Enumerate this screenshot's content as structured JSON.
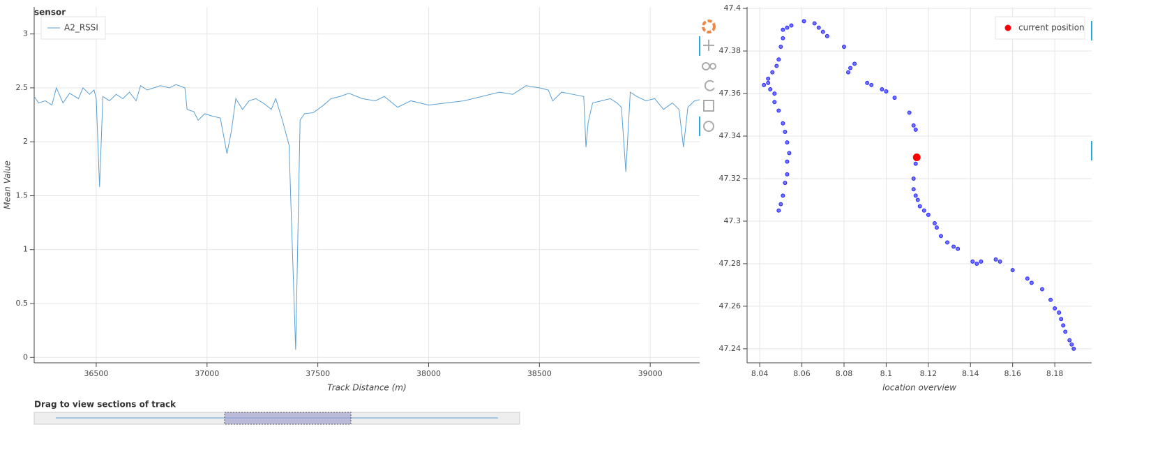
{
  "chart_data": [
    {
      "type": "line",
      "title": "sensor",
      "x_label": "Track Distance (m)",
      "y_label": "Mean Value",
      "legend": "top_left",
      "xlim": [
        36220,
        39223
      ],
      "ylim": [
        -0.05,
        3.25
      ],
      "xticks": [
        36500,
        37000,
        37500,
        38000,
        38500,
        39000
      ],
      "yticks": [
        0,
        0.5,
        1,
        1.5,
        2,
        2.5,
        3
      ],
      "grid": true,
      "series": [
        {
          "name": "A2_RSSI",
          "color": "#5a9fd4",
          "x": [
            36220,
            36240,
            36270,
            36300,
            36320,
            36350,
            36380,
            36420,
            36440,
            36470,
            36490,
            36500,
            36515,
            36530,
            36560,
            36590,
            36620,
            36650,
            36680,
            36700,
            36730,
            36760,
            36790,
            36830,
            36860,
            36900,
            36910,
            36940,
            36960,
            36990,
            37020,
            37060,
            37090,
            37110,
            37130,
            37160,
            37190,
            37220,
            37260,
            37290,
            37310,
            37340,
            37370,
            37400,
            37420,
            37440,
            37480,
            37520,
            37560,
            37600,
            37640,
            37700,
            37760,
            37800,
            37860,
            37920,
            38000,
            38080,
            38160,
            38240,
            38320,
            38380,
            38440,
            38500,
            38540,
            38560,
            38600,
            38650,
            38700,
            38710,
            38720,
            38740,
            38780,
            38820,
            38850,
            38870,
            38890,
            38910,
            38940,
            38980,
            39020,
            39060,
            39100,
            39130,
            39150,
            39170,
            39200,
            39223
          ],
          "values": [
            2.42,
            2.36,
            2.38,
            2.34,
            2.5,
            2.36,
            2.45,
            2.4,
            2.5,
            2.44,
            2.48,
            2.4,
            1.58,
            2.42,
            2.38,
            2.44,
            2.4,
            2.46,
            2.38,
            2.52,
            2.48,
            2.5,
            2.52,
            2.5,
            2.53,
            2.5,
            2.3,
            2.28,
            2.2,
            2.26,
            2.24,
            2.22,
            1.89,
            2.1,
            2.4,
            2.3,
            2.38,
            2.4,
            2.35,
            2.3,
            2.4,
            2.2,
            1.97,
            0.07,
            2.2,
            2.26,
            2.27,
            2.33,
            2.4,
            2.42,
            2.45,
            2.4,
            2.38,
            2.42,
            2.32,
            2.38,
            2.34,
            2.36,
            2.38,
            2.42,
            2.46,
            2.44,
            2.52,
            2.5,
            2.48,
            2.38,
            2.46,
            2.44,
            2.42,
            1.95,
            2.18,
            2.36,
            2.38,
            2.4,
            2.36,
            2.32,
            1.72,
            2.46,
            2.42,
            2.38,
            2.4,
            2.3,
            2.36,
            2.3,
            1.95,
            2.32,
            2.38,
            2.39
          ]
        }
      ]
    },
    {
      "type": "scatter",
      "x_label": "location overview",
      "legend": "top_right",
      "xlim": [
        8.034,
        8.1975
      ],
      "ylim": [
        47.2334,
        47.4007
      ],
      "xticks": [
        8.04,
        8.06,
        8.08,
        8.1,
        8.12,
        8.14,
        8.16,
        8.18
      ],
      "yticks": [
        47.24,
        47.26,
        47.28,
        47.3,
        47.32,
        47.34,
        47.36,
        47.38,
        47.4
      ],
      "grid": true,
      "series": [
        {
          "color": "#0000ff",
          "x": [
            8.049,
            8.05,
            8.051,
            8.052,
            8.053,
            8.053,
            8.054,
            8.053,
            8.052,
            8.051,
            8.049,
            8.047,
            8.047,
            8.045,
            8.044,
            8.042,
            8.044,
            8.046,
            8.048,
            8.049,
            8.05,
            8.051,
            8.051,
            8.053,
            8.055,
            8.061,
            8.066,
            8.068,
            8.07,
            8.072,
            8.08,
            8.082,
            8.083,
            8.085,
            8.091,
            8.093,
            8.098,
            8.1,
            8.104,
            8.111,
            8.113,
            8.114,
            8.114,
            8.113,
            8.113,
            8.114,
            8.115,
            8.116,
            8.118,
            8.12,
            8.123,
            8.124,
            8.126,
            8.129,
            8.132,
            8.134,
            8.141,
            8.143,
            8.145,
            8.152,
            8.154,
            8.16,
            8.167,
            8.169,
            8.174,
            8.178,
            8.18,
            8.182,
            8.183,
            8.184,
            8.185,
            8.187,
            8.188,
            8.189
          ],
          "values": [
            47.305,
            47.308,
            47.312,
            47.318,
            47.322,
            47.328,
            47.332,
            47.337,
            47.342,
            47.346,
            47.352,
            47.356,
            47.36,
            47.362,
            47.365,
            47.364,
            47.367,
            47.37,
            47.373,
            47.376,
            47.382,
            47.386,
            47.39,
            47.391,
            47.392,
            47.394,
            47.393,
            47.391,
            47.389,
            47.387,
            47.382,
            47.37,
            47.372,
            47.374,
            47.365,
            47.364,
            47.362,
            47.361,
            47.358,
            47.351,
            47.345,
            47.343,
            47.327,
            47.32,
            47.315,
            47.312,
            47.31,
            47.307,
            47.305,
            47.303,
            47.299,
            47.297,
            47.293,
            47.29,
            47.288,
            47.287,
            47.281,
            47.28,
            47.281,
            47.282,
            47.281,
            47.277,
            47.273,
            47.271,
            47.268,
            47.263,
            47.259,
            47.257,
            47.254,
            47.251,
            47.248,
            47.244,
            47.242,
            47.24
          ]
        },
        {
          "name": "current position",
          "color": "#ff0000",
          "x": [
            8.1145
          ],
          "values": [
            47.33
          ]
        }
      ]
    }
  ],
  "slider": {
    "title": "Drag to view sections of track"
  }
}
